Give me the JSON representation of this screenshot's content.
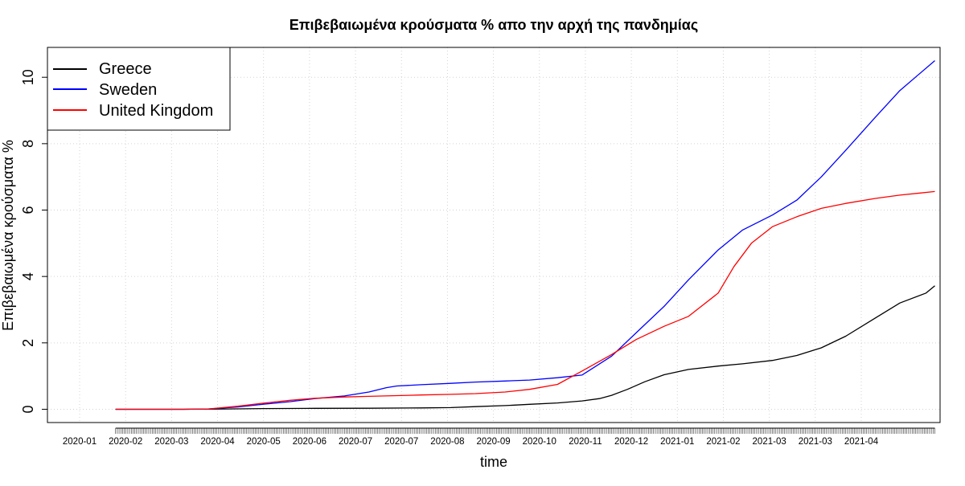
{
  "chart_data": {
    "type": "line",
    "title": "Επιβεβαιωμένα κρούσματα % απο την αρχή της πανδημίας",
    "xlabel": "time",
    "ylabel": "Επιβεβαιωμένα κρούσματα %",
    "x_tick_labels": [
      "2020-01",
      "2020-02",
      "2020-03",
      "2020-04",
      "2020-05",
      "2020-06",
      "2020-07",
      "2020-07",
      "2020-08",
      "2020-09",
      "2020-10",
      "2020-11",
      "2020-12",
      "2021-01",
      "2021-02",
      "2021-03",
      "2021-03",
      "2021-04"
    ],
    "y_ticks": [
      0,
      2,
      4,
      6,
      8,
      10
    ],
    "ylim": [
      -0.4,
      10.9
    ],
    "xlim": [
      "2019-12-14",
      "2021-05-08"
    ],
    "grid": true,
    "legend_position": "top-left",
    "series": [
      {
        "name": "Greece",
        "color": "#000000",
        "points": [
          [
            "2020-01-22",
            0
          ],
          [
            "2020-03-01",
            0
          ],
          [
            "2020-03-15",
            0.002
          ],
          [
            "2020-04-15",
            0.02
          ],
          [
            "2020-05-15",
            0.028
          ],
          [
            "2020-06-15",
            0.03
          ],
          [
            "2020-07-15",
            0.04
          ],
          [
            "2020-08-01",
            0.05
          ],
          [
            "2020-08-15",
            0.08
          ],
          [
            "2020-09-01",
            0.11
          ],
          [
            "2020-09-15",
            0.15
          ],
          [
            "2020-10-01",
            0.19
          ],
          [
            "2020-10-15",
            0.25
          ],
          [
            "2020-10-25",
            0.32
          ],
          [
            "2020-11-01",
            0.42
          ],
          [
            "2020-11-10",
            0.6
          ],
          [
            "2020-11-20",
            0.83
          ],
          [
            "2020-12-01",
            1.04
          ],
          [
            "2020-12-15",
            1.2
          ],
          [
            "2021-01-01",
            1.3
          ],
          [
            "2021-01-15",
            1.37
          ],
          [
            "2021-02-01",
            1.47
          ],
          [
            "2021-02-15",
            1.62
          ],
          [
            "2021-03-01",
            1.85
          ],
          [
            "2021-03-15",
            2.2
          ],
          [
            "2021-04-01",
            2.75
          ],
          [
            "2021-04-15",
            3.2
          ],
          [
            "2021-04-30",
            3.5
          ],
          [
            "2021-05-05",
            3.72
          ]
        ]
      },
      {
        "name": "Sweden",
        "color": "#0000ff",
        "points": [
          [
            "2020-01-22",
            0
          ],
          [
            "2020-03-01",
            0
          ],
          [
            "2020-03-15",
            0.01
          ],
          [
            "2020-04-01",
            0.07
          ],
          [
            "2020-04-15",
            0.15
          ],
          [
            "2020-05-01",
            0.23
          ],
          [
            "2020-05-15",
            0.32
          ],
          [
            "2020-06-01",
            0.4
          ],
          [
            "2020-06-15",
            0.52
          ],
          [
            "2020-06-25",
            0.65
          ],
          [
            "2020-07-01",
            0.7
          ],
          [
            "2020-07-15",
            0.74
          ],
          [
            "2020-08-01",
            0.78
          ],
          [
            "2020-08-15",
            0.82
          ],
          [
            "2020-09-01",
            0.85
          ],
          [
            "2020-09-15",
            0.88
          ],
          [
            "2020-10-01",
            0.95
          ],
          [
            "2020-10-15",
            1.03
          ],
          [
            "2020-11-01",
            1.6
          ],
          [
            "2020-11-15",
            2.3
          ],
          [
            "2020-12-01",
            3.1
          ],
          [
            "2020-12-15",
            3.9
          ],
          [
            "2021-01-01",
            4.8
          ],
          [
            "2021-01-15",
            5.4
          ],
          [
            "2021-02-01",
            5.85
          ],
          [
            "2021-02-15",
            6.3
          ],
          [
            "2021-03-01",
            7
          ],
          [
            "2021-03-15",
            7.8
          ],
          [
            "2021-04-01",
            8.8
          ],
          [
            "2021-04-15",
            9.6
          ],
          [
            "2021-05-05",
            10.5
          ]
        ]
      },
      {
        "name": "United Kingdom",
        "color": "#ff0000",
        "points": [
          [
            "2020-01-22",
            0
          ],
          [
            "2020-03-01",
            0
          ],
          [
            "2020-03-15",
            0.01
          ],
          [
            "2020-04-01",
            0.09
          ],
          [
            "2020-04-15",
            0.18
          ],
          [
            "2020-05-01",
            0.27
          ],
          [
            "2020-05-15",
            0.33
          ],
          [
            "2020-06-01",
            0.37
          ],
          [
            "2020-06-15",
            0.39
          ],
          [
            "2020-07-01",
            0.41
          ],
          [
            "2020-07-15",
            0.43
          ],
          [
            "2020-08-01",
            0.45
          ],
          [
            "2020-08-15",
            0.47
          ],
          [
            "2020-09-01",
            0.52
          ],
          [
            "2020-09-15",
            0.6
          ],
          [
            "2020-10-01",
            0.75
          ],
          [
            "2020-10-15",
            1.15
          ],
          [
            "2020-11-01",
            1.65
          ],
          [
            "2020-11-15",
            2.1
          ],
          [
            "2020-12-01",
            2.5
          ],
          [
            "2020-12-15",
            2.8
          ],
          [
            "2021-01-01",
            3.5
          ],
          [
            "2021-01-10",
            4.3
          ],
          [
            "2021-01-20",
            5.0
          ],
          [
            "2021-02-01",
            5.5
          ],
          [
            "2021-02-15",
            5.8
          ],
          [
            "2021-03-01",
            6.05
          ],
          [
            "2021-03-15",
            6.2
          ],
          [
            "2021-04-01",
            6.35
          ],
          [
            "2021-04-15",
            6.45
          ],
          [
            "2021-05-05",
            6.56
          ]
        ]
      }
    ]
  }
}
